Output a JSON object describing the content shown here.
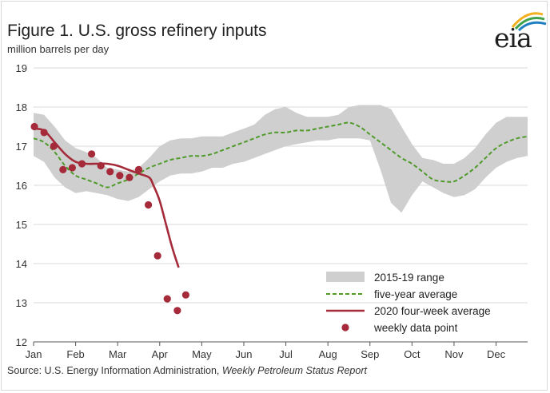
{
  "header": {
    "title": "Figure 1. U.S. gross refinery inputs",
    "subtitle": "million barrels  per day",
    "logo_text": "eia"
  },
  "footer": {
    "source_prefix": "Source: U.S. Energy Information Administration, ",
    "source_report": "Weekly Petroleum Status Report"
  },
  "colors": {
    "range_band": "#cfcfcf",
    "five_year_avg": "#4e9a2a",
    "four_week_avg": "#a52a3a",
    "weekly_points": "#a52a3a",
    "gridline": "#d9d9d9",
    "logo_arcs": [
      "#f2b01e",
      "#3fa34d",
      "#1f7fc1"
    ]
  },
  "chart_data": {
    "type": "line",
    "x_axis": {
      "unit": "week of year",
      "ticks": [
        "Jan",
        "Feb",
        "Mar",
        "Apr",
        "May",
        "Jun",
        "Jul",
        "Aug",
        "Sep",
        "Oct",
        "Nov",
        "Dec"
      ],
      "range": [
        "Jan 1",
        "Dec 31"
      ]
    },
    "ylim": [
      12,
      19
    ],
    "yticks": [
      12,
      13,
      14,
      15,
      16,
      17,
      18,
      19
    ],
    "grid": "horizontal",
    "legend_position": "bottom-right",
    "legend": [
      "2015-19 range",
      "five-year average",
      "2020 four-week average",
      "weekly data point"
    ],
    "range_band": {
      "name": "2015-19 range",
      "x_month": [
        0,
        0.25,
        0.5,
        0.75,
        1.0,
        1.25,
        1.5,
        1.75,
        2.0,
        2.25,
        2.5,
        2.75,
        3.0,
        3.25,
        3.5,
        3.75,
        4.0,
        4.25,
        4.5,
        4.75,
        5.0,
        5.25,
        5.5,
        5.75,
        6.0,
        6.25,
        6.5,
        6.75,
        7.0,
        7.25,
        7.5,
        7.75,
        8.0,
        8.25,
        8.5,
        8.75,
        9.0,
        9.25,
        9.5,
        9.75,
        10.0,
        10.25,
        10.5,
        10.75,
        11.0,
        11.25,
        11.5,
        11.75
      ],
      "high": [
        17.85,
        17.8,
        17.5,
        17.15,
        16.95,
        16.85,
        16.7,
        16.45,
        16.4,
        16.35,
        16.45,
        16.7,
        17.0,
        17.15,
        17.2,
        17.2,
        17.25,
        17.25,
        17.25,
        17.35,
        17.45,
        17.55,
        17.8,
        17.95,
        18.0,
        17.85,
        17.75,
        17.75,
        17.75,
        17.8,
        18.0,
        18.05,
        18.05,
        18.05,
        17.95,
        17.5,
        17.05,
        16.7,
        16.65,
        16.55,
        16.55,
        16.7,
        16.95,
        17.3,
        17.6,
        17.75,
        17.75,
        17.75
      ],
      "low": [
        16.75,
        16.6,
        16.2,
        15.95,
        15.8,
        15.85,
        15.8,
        15.75,
        15.65,
        15.6,
        15.7,
        15.9,
        16.1,
        16.25,
        16.3,
        16.3,
        16.35,
        16.45,
        16.45,
        16.55,
        16.6,
        16.7,
        16.8,
        16.9,
        17.0,
        17.05,
        17.1,
        17.15,
        17.15,
        17.2,
        17.2,
        17.2,
        17.15,
        16.4,
        15.55,
        15.3,
        15.75,
        16.1,
        15.95,
        15.8,
        15.7,
        15.75,
        15.9,
        16.2,
        16.45,
        16.6,
        16.7,
        16.75
      ]
    },
    "series": [
      {
        "name": "five-year average",
        "x_month": [
          0,
          0.25,
          0.5,
          0.75,
          1.0,
          1.25,
          1.5,
          1.75,
          2.0,
          2.25,
          2.5,
          2.75,
          3.0,
          3.25,
          3.5,
          3.75,
          4.0,
          4.25,
          4.5,
          4.75,
          5.0,
          5.25,
          5.5,
          5.75,
          6.0,
          6.25,
          6.5,
          6.75,
          7.0,
          7.25,
          7.5,
          7.75,
          8.0,
          8.25,
          8.5,
          8.75,
          9.0,
          9.25,
          9.5,
          9.75,
          10.0,
          10.25,
          10.5,
          10.75,
          11.0,
          11.25,
          11.5,
          11.75
        ],
        "values": [
          17.2,
          17.1,
          16.85,
          16.5,
          16.25,
          16.15,
          16.05,
          15.95,
          16.05,
          16.15,
          16.3,
          16.45,
          16.55,
          16.65,
          16.7,
          16.75,
          16.75,
          16.8,
          16.9,
          17.0,
          17.1,
          17.2,
          17.3,
          17.35,
          17.35,
          17.4,
          17.4,
          17.45,
          17.5,
          17.55,
          17.6,
          17.5,
          17.3,
          17.1,
          16.9,
          16.7,
          16.55,
          16.35,
          16.15,
          16.1,
          16.1,
          16.25,
          16.45,
          16.7,
          16.95,
          17.1,
          17.2,
          17.25
        ]
      },
      {
        "name": "2020 four-week average",
        "x_month": [
          0,
          0.25,
          0.5,
          0.75,
          1.0,
          1.25,
          1.5,
          1.75,
          2.0,
          2.25,
          2.5,
          2.75,
          2.85,
          3.0,
          3.15,
          3.3,
          3.45
        ],
        "values": [
          17.45,
          17.4,
          17.1,
          16.8,
          16.6,
          16.55,
          16.55,
          16.55,
          16.5,
          16.4,
          16.3,
          16.2,
          16.0,
          15.6,
          15.0,
          14.4,
          13.9
        ]
      }
    ],
    "weekly_points": {
      "name": "weekly data point",
      "x_month": [
        0.02,
        0.25,
        0.48,
        0.7,
        0.92,
        1.15,
        1.38,
        1.6,
        1.82,
        2.05,
        2.28,
        2.5,
        2.73,
        2.95,
        3.18,
        3.42,
        3.62
      ],
      "values": [
        17.5,
        17.35,
        17.0,
        16.4,
        16.45,
        16.55,
        16.8,
        16.5,
        16.35,
        16.25,
        16.2,
        16.4,
        15.5,
        14.2,
        13.1,
        12.8,
        13.2
      ]
    }
  }
}
